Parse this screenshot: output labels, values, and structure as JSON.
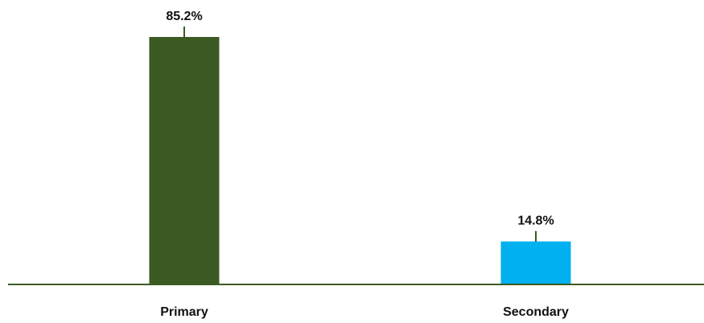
{
  "chart_data": {
    "type": "bar",
    "title": "",
    "xlabel": "",
    "ylabel": "",
    "categories": [
      "Primary",
      "Secondary"
    ],
    "values": [
      85.2,
      14.8
    ],
    "data_labels": [
      "85.2%",
      "14.8%"
    ],
    "ylim": [
      0,
      100
    ],
    "grid": false,
    "legend": "none",
    "colors": [
      "#3c5a24",
      "#00b0ef"
    ],
    "axis_color": "#3c5a24",
    "error_bar_color": "#3c5a24"
  }
}
